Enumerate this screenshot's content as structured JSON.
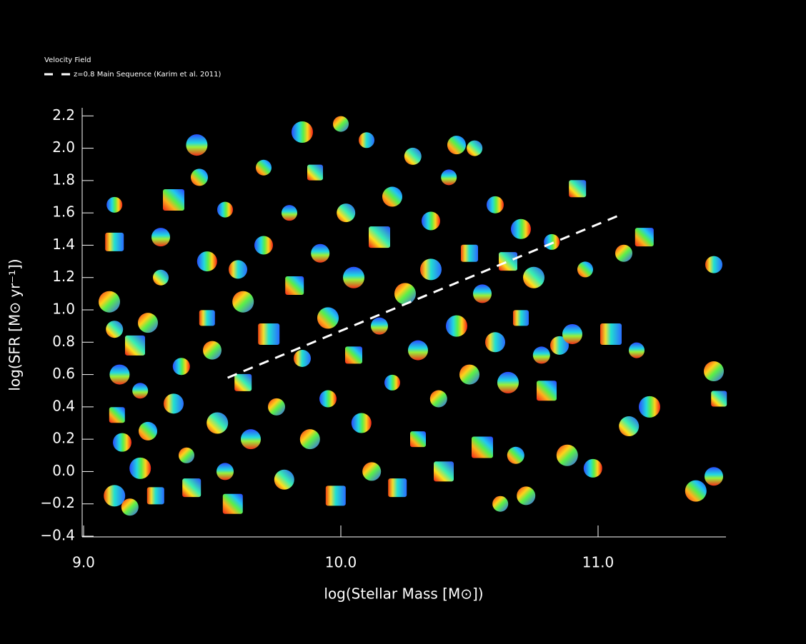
{
  "chart_data": {
    "type": "scatter",
    "xlabel": "log(Stellar Mass [M⊙])",
    "ylabel": "log(SFR [M⊙ yr⁻¹])",
    "xlim": [
      9.0,
      11.5
    ],
    "ylim": [
      -0.4,
      2.25
    ],
    "xticks": [
      {
        "value": 9.0,
        "label": "9.0"
      },
      {
        "value": 10.0,
        "label": "10.0"
      },
      {
        "value": 11.0,
        "label": "11.0"
      }
    ],
    "yticks": [
      {
        "value": -0.4,
        "label": "−0.4"
      },
      {
        "value": -0.2,
        "label": "−0.2"
      },
      {
        "value": 0.0,
        "label": "0.0"
      },
      0.2,
      0.4,
      0.6,
      0.8,
      {
        "value": 1.0,
        "label": "1.0"
      },
      1.2,
      1.4,
      1.6,
      1.8,
      {
        "value": 2.0,
        "label": "2.0"
      },
      2.2
    ],
    "legend": "upper left",
    "series": [
      {
        "name": "Velocity Field",
        "x": [
          9.12,
          9.12,
          9.1,
          9.12,
          9.14,
          9.13,
          9.15,
          9.12,
          9.18,
          9.2,
          9.22,
          9.25,
          9.22,
          9.28,
          9.25,
          9.3,
          9.3,
          9.35,
          9.38,
          9.35,
          9.4,
          9.42,
          9.44,
          9.45,
          9.48,
          9.48,
          9.5,
          9.52,
          9.55,
          9.58,
          9.55,
          9.6,
          9.62,
          9.62,
          9.65,
          9.7,
          9.7,
          9.72,
          9.75,
          9.78,
          9.8,
          9.82,
          9.85,
          9.85,
          9.88,
          9.9,
          9.92,
          9.95,
          9.95,
          9.98,
          10.0,
          10.02,
          10.05,
          10.05,
          10.08,
          10.1,
          10.12,
          10.15,
          10.15,
          10.2,
          10.2,
          10.22,
          10.25,
          10.28,
          10.3,
          10.3,
          10.35,
          10.35,
          10.38,
          10.4,
          10.42,
          10.45,
          10.45,
          10.5,
          10.5,
          10.52,
          10.55,
          10.55,
          10.6,
          10.6,
          10.62,
          10.65,
          10.65,
          10.68,
          10.7,
          10.7,
          10.72,
          10.75,
          10.78,
          10.8,
          10.82,
          10.85,
          10.88,
          10.92,
          10.9,
          10.95,
          10.98,
          11.05,
          11.1,
          11.12,
          11.15,
          11.18,
          11.2,
          11.45,
          11.45,
          11.47,
          11.45,
          11.38
        ],
        "y": [
          1.65,
          1.42,
          1.05,
          0.88,
          0.6,
          0.35,
          0.18,
          -0.15,
          -0.22,
          0.78,
          0.5,
          0.25,
          0.02,
          -0.15,
          0.92,
          1.2,
          1.45,
          1.68,
          0.65,
          0.42,
          0.1,
          -0.1,
          2.02,
          1.82,
          1.3,
          0.95,
          0.75,
          0.3,
          0.0,
          -0.2,
          1.62,
          1.25,
          1.05,
          0.55,
          0.2,
          1.88,
          1.4,
          0.85,
          0.4,
          -0.05,
          1.6,
          1.15,
          2.1,
          0.7,
          0.2,
          1.85,
          1.35,
          0.95,
          0.45,
          -0.15,
          2.15,
          1.6,
          1.2,
          0.72,
          0.3,
          2.05,
          0.0,
          1.45,
          0.9,
          1.7,
          0.55,
          -0.1,
          1.1,
          1.95,
          0.75,
          0.2,
          1.55,
          1.25,
          0.45,
          0.0,
          1.82,
          2.02,
          0.9,
          1.35,
          0.6,
          2.0,
          1.1,
          0.15,
          1.65,
          0.8,
          -0.2,
          1.3,
          0.55,
          0.1,
          1.5,
          0.95,
          -0.15,
          1.2,
          0.72,
          0.5,
          1.42,
          0.78,
          0.1,
          1.75,
          0.85,
          1.25,
          0.02,
          0.85,
          1.35,
          0.28,
          0.75,
          1.45,
          0.4,
          1.28,
          0.62,
          0.45,
          -0.03,
          -0.12
        ]
      },
      {
        "name": "z=0.8 Main Sequence (Karim et al. 2011)",
        "color": "#ffffff",
        "dashed": true,
        "x": [
          9.56,
          11.09
        ],
        "y": [
          0.58,
          1.59
        ]
      }
    ]
  }
}
